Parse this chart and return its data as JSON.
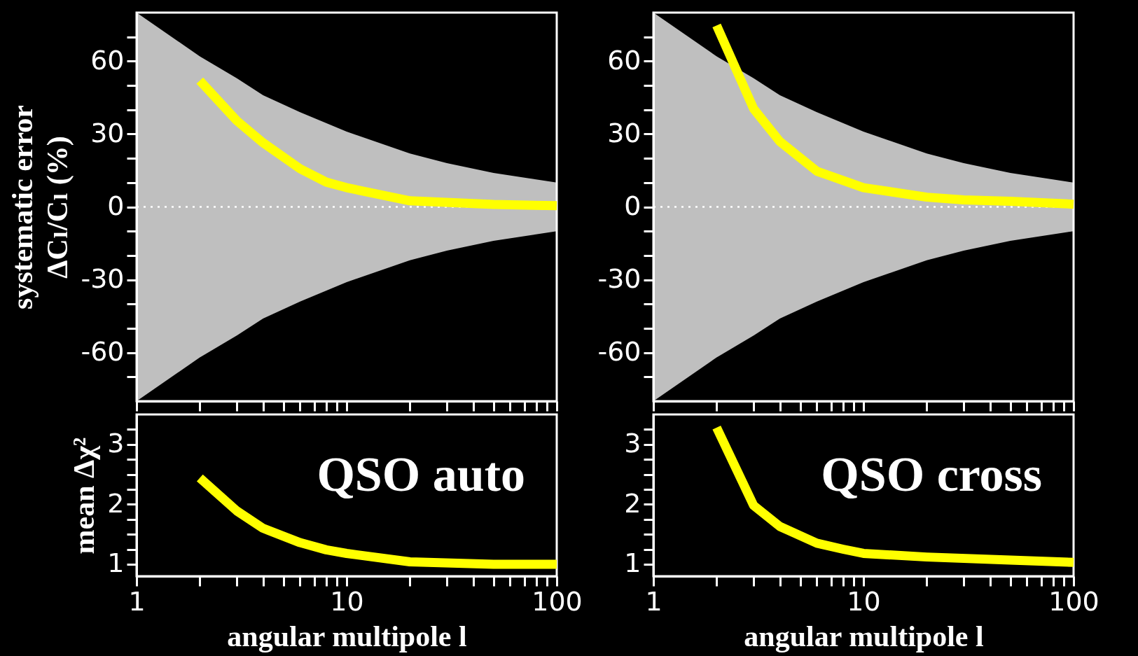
{
  "chart_data": [
    {
      "type": "line",
      "ylabel": "systematic error\nΔCₗ/Cₗ (%)",
      "log": "x",
      "tick_labels": "y",
      "xlim": [
        1,
        100
      ],
      "xticks": [
        1,
        {
          "value": 2,
          "label": null
        },
        {
          "value": 3,
          "label": null
        },
        {
          "value": 4,
          "label": null
        },
        {
          "value": 5,
          "label": null
        },
        {
          "value": 6,
          "label": null
        },
        {
          "value": 7,
          "label": null
        },
        {
          "value": 8,
          "label": null
        },
        {
          "value": 9,
          "label": null
        },
        10,
        {
          "value": 20,
          "label": null
        },
        {
          "value": 30,
          "label": null
        },
        {
          "value": 40,
          "label": null
        },
        {
          "value": 50,
          "label": null
        },
        {
          "value": 60,
          "label": null
        },
        {
          "value": 70,
          "label": null
        },
        {
          "value": 80,
          "label": null
        },
        {
          "value": 90,
          "label": null
        },
        100
      ],
      "ylim": [
        -80,
        80
      ],
      "yticks": [
        {
          "value": -70,
          "label": null
        },
        -60,
        {
          "value": -50,
          "label": null
        },
        {
          "value": -40,
          "label": null
        },
        -30,
        {
          "value": -20,
          "label": null
        },
        {
          "value": -10,
          "label": null
        },
        0,
        {
          "value": 10,
          "label": null
        },
        {
          "value": 20,
          "label": null
        },
        30,
        {
          "value": 40,
          "label": null
        },
        {
          "value": 50,
          "label": null
        },
        60,
        {
          "value": 70,
          "label": null
        }
      ],
      "series": [
        {
          "color": "#ffffff",
          "line_style": "dotted",
          "x": [
            1,
            2,
            3,
            4,
            6,
            10,
            20,
            30,
            50,
            100
          ],
          "values": [
            0,
            0,
            0,
            0,
            0,
            0,
            0,
            0,
            0,
            0
          ],
          "lower": [
            -80,
            -62,
            -53,
            -46,
            -39,
            -31,
            -22,
            -18,
            -14,
            -10
          ],
          "upper": [
            80,
            62,
            53,
            46,
            39,
            31,
            22,
            18,
            14,
            10
          ]
        },
        {
          "color": "#ffff00",
          "x": [
            2,
            3,
            4,
            6,
            8,
            10,
            20,
            50,
            100
          ],
          "values": [
            52,
            35.5,
            26.4,
            15.7,
            10.2,
            7.9,
            2.5,
            1,
            0.5
          ]
        }
      ]
    },
    {
      "type": "line",
      "log": "x",
      "tick_labels": "y",
      "xlim": [
        1,
        100
      ],
      "xticks": [
        1,
        {
          "value": 2,
          "label": null
        },
        {
          "value": 3,
          "label": null
        },
        {
          "value": 4,
          "label": null
        },
        {
          "value": 5,
          "label": null
        },
        {
          "value": 6,
          "label": null
        },
        {
          "value": 7,
          "label": null
        },
        {
          "value": 8,
          "label": null
        },
        {
          "value": 9,
          "label": null
        },
        10,
        {
          "value": 20,
          "label": null
        },
        {
          "value": 30,
          "label": null
        },
        {
          "value": 40,
          "label": null
        },
        {
          "value": 50,
          "label": null
        },
        {
          "value": 60,
          "label": null
        },
        {
          "value": 70,
          "label": null
        },
        {
          "value": 80,
          "label": null
        },
        {
          "value": 90,
          "label": null
        },
        100
      ],
      "ylim": [
        -80,
        80
      ],
      "yticks": [
        {
          "value": -70,
          "label": null
        },
        -60,
        {
          "value": -50,
          "label": null
        },
        {
          "value": -40,
          "label": null
        },
        -30,
        {
          "value": -20,
          "label": null
        },
        {
          "value": -10,
          "label": null
        },
        0,
        {
          "value": 10,
          "label": null
        },
        {
          "value": 20,
          "label": null
        },
        30,
        {
          "value": 40,
          "label": null
        },
        {
          "value": 50,
          "label": null
        },
        60,
        {
          "value": 70,
          "label": null
        }
      ],
      "series": [
        {
          "color": "#ffffff",
          "line_style": "dotted",
          "x": [
            1,
            2,
            3,
            4,
            6,
            10,
            20,
            30,
            50,
            100
          ],
          "values": [
            0,
            0,
            0,
            0,
            0,
            0,
            0,
            0,
            0,
            0
          ],
          "lower": [
            -80,
            -62,
            -53,
            -46,
            -39,
            -31,
            -22,
            -18,
            -14,
            -10
          ],
          "upper": [
            80,
            62,
            53,
            46,
            39,
            31,
            22,
            18,
            14,
            10
          ]
        },
        {
          "color": "#ffff00",
          "x": [
            2,
            3,
            4,
            6,
            10,
            20,
            30,
            50,
            100
          ],
          "values": [
            74.7,
            40.4,
            26.9,
            14.7,
            7.9,
            4,
            2.9,
            2.3,
            1.1
          ]
        }
      ]
    },
    {
      "type": "line",
      "xlabel": "angular multipole l",
      "ylabel": "mean Δχ²",
      "log": "x",
      "xlim": [
        1,
        100
      ],
      "xticks": [
        1,
        {
          "value": 2,
          "label": null
        },
        {
          "value": 3,
          "label": null
        },
        {
          "value": 4,
          "label": null
        },
        {
          "value": 5,
          "label": null
        },
        {
          "value": 6,
          "label": null
        },
        {
          "value": 7,
          "label": null
        },
        {
          "value": 8,
          "label": null
        },
        {
          "value": 9,
          "label": null
        },
        10,
        {
          "value": 20,
          "label": null
        },
        {
          "value": 30,
          "label": null
        },
        {
          "value": 40,
          "label": null
        },
        {
          "value": 50,
          "label": null
        },
        {
          "value": 60,
          "label": null
        },
        {
          "value": 70,
          "label": null
        },
        {
          "value": 80,
          "label": null
        },
        {
          "value": 90,
          "label": null
        },
        100
      ],
      "ylim": [
        0.8,
        3.5
      ],
      "yticks": [
        1,
        {
          "value": 1.25,
          "label": null
        },
        {
          "value": 1.5,
          "label": null
        },
        {
          "value": 1.75,
          "label": null
        },
        2,
        {
          "value": 2.25,
          "label": null
        },
        {
          "value": 2.5,
          "label": null
        },
        {
          "value": 2.75,
          "label": null
        },
        3,
        {
          "value": 3.25,
          "label": null
        }
      ],
      "series": [
        {
          "color": "#ffff00",
          "x": [
            2,
            3,
            4,
            6,
            8,
            10,
            20,
            50,
            100
          ],
          "values": [
            2.44,
            1.89,
            1.6,
            1.36,
            1.24,
            1.18,
            1.04,
            1.0,
            1.0
          ]
        }
      ],
      "annotations": [
        "QSO auto"
      ]
    },
    {
      "type": "line",
      "xlabel": "angular multipole l",
      "log": "x",
      "xlim": [
        1,
        100
      ],
      "xticks": [
        1,
        {
          "value": 2,
          "label": null
        },
        {
          "value": 3,
          "label": null
        },
        {
          "value": 4,
          "label": null
        },
        {
          "value": 5,
          "label": null
        },
        {
          "value": 6,
          "label": null
        },
        {
          "value": 7,
          "label": null
        },
        {
          "value": 8,
          "label": null
        },
        {
          "value": 9,
          "label": null
        },
        10,
        {
          "value": 20,
          "label": null
        },
        {
          "value": 30,
          "label": null
        },
        {
          "value": 40,
          "label": null
        },
        {
          "value": 50,
          "label": null
        },
        {
          "value": 60,
          "label": null
        },
        {
          "value": 70,
          "label": null
        },
        {
          "value": 80,
          "label": null
        },
        {
          "value": 90,
          "label": null
        },
        100
      ],
      "ylim": [
        0.8,
        3.5
      ],
      "yticks": [
        1,
        {
          "value": 1.25,
          "label": null
        },
        {
          "value": 1.5,
          "label": null
        },
        {
          "value": 1.75,
          "label": null
        },
        2,
        {
          "value": 2.25,
          "label": null
        },
        {
          "value": 2.5,
          "label": null
        },
        {
          "value": 2.75,
          "label": null
        },
        3,
        {
          "value": 3.25,
          "label": null
        }
      ],
      "series": [
        {
          "color": "#ffff00",
          "x": [
            2,
            3,
            4,
            6,
            8,
            10,
            20,
            50,
            100
          ],
          "values": [
            3.28,
            1.98,
            1.63,
            1.35,
            1.25,
            1.18,
            1.12,
            1.07,
            1.03
          ]
        }
      ],
      "annotations": [
        "QSO cross"
      ]
    }
  ]
}
